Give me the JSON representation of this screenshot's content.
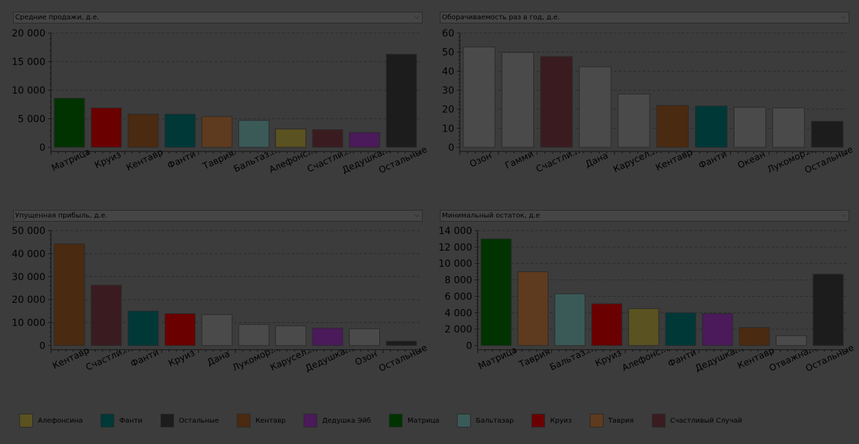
{
  "charts_meta": [
    {
      "dropdown_label": "Средние продажи, д.е."
    },
    {
      "dropdown_label": "Оборачиваемость раз в год, д.е."
    },
    {
      "dropdown_label": "Упущенная прибыль, д.е."
    },
    {
      "dropdown_label": "Минимальный остаток, д.е"
    }
  ],
  "chart_data": [
    {
      "type": "bar",
      "title": "Средние продажи, д.е.",
      "categories": [
        "Матрица",
        "Круиз",
        "Кентавр",
        "Фанти",
        "Таврия",
        "Бальтаз...",
        "Алефонс...",
        "Счастли...",
        "Дедушка...",
        "Остальные"
      ],
      "values": [
        8600,
        6900,
        5800,
        5800,
        5400,
        4700,
        3200,
        3100,
        2600,
        16300
      ],
      "colors": [
        "#003300",
        "#6b0000",
        "#4a2a10",
        "#003838",
        "#5e3a1e",
        "#3a5a58",
        "#5a5220",
        "#3a1c20",
        "#4a1a5a",
        "#1c1c1c"
      ],
      "ylim": [
        0,
        20000
      ],
      "yticks": [
        0,
        5000,
        10000,
        15000,
        20000
      ],
      "ytick_labels": [
        "0",
        "5 000",
        "10 000",
        "15 000",
        "20 000"
      ],
      "grid": true
    },
    {
      "type": "bar",
      "title": "Оборачиваемость раз в год, д.е.",
      "categories": [
        "Озон",
        "Гамми",
        "Счастли...",
        "Дана",
        "Карусел...",
        "Кентавр",
        "Фанти",
        "Океан",
        "Лукомор...",
        "Остальные"
      ],
      "values": [
        52.7,
        49.8,
        47.7,
        42.3,
        28,
        22,
        21.7,
        21,
        20.7,
        13.7
      ],
      "colors": [
        "#4a4a4a",
        "#4a4a4a",
        "#3a1c20",
        "#4a4a4a",
        "#4a4a4a",
        "#4a2a10",
        "#003838",
        "#4a4a4a",
        "#4a4a4a",
        "#1c1c1c"
      ],
      "ylim": [
        0,
        60
      ],
      "yticks": [
        0,
        10,
        20,
        30,
        40,
        50,
        60
      ],
      "ytick_labels": [
        "0",
        "10",
        "20",
        "30",
        "40",
        "50",
        "60"
      ],
      "grid": true
    },
    {
      "type": "bar",
      "title": "Упущенная прибыль, д.е.",
      "categories": [
        "Кентавр",
        "Счастли...",
        "Фанти",
        "Круиз",
        "Дана",
        "Лукомор...",
        "Карусел...",
        "Дедушка...",
        "Озон",
        "Остальные"
      ],
      "values": [
        44200,
        26300,
        15000,
        13900,
        13500,
        9200,
        8600,
        7600,
        7300,
        1900
      ],
      "colors": [
        "#4a2a10",
        "#3a1c20",
        "#003838",
        "#6b0000",
        "#4a4a4a",
        "#4a4a4a",
        "#4a4a4a",
        "#4a1a5a",
        "#4a4a4a",
        "#1c1c1c"
      ],
      "ylim": [
        0,
        50000
      ],
      "yticks": [
        0,
        10000,
        20000,
        30000,
        40000,
        50000
      ],
      "ytick_labels": [
        "0",
        "10 000",
        "20 000",
        "30 000",
        "40 000",
        "50 000"
      ],
      "grid": true
    },
    {
      "type": "bar",
      "title": "Минимальный остаток, д.е",
      "categories": [
        "Матрица",
        "Таврия",
        "Бальтаз...",
        "Круиз",
        "Алефонс...",
        "Фанти",
        "Дедушка...",
        "Кентавр",
        "Отважна...",
        "Остальные"
      ],
      "values": [
        13000,
        9000,
        6300,
        5100,
        4500,
        4000,
        3900,
        2200,
        1200,
        8700
      ],
      "colors": [
        "#003300",
        "#5e3a1e",
        "#3a5a58",
        "#6b0000",
        "#5a5220",
        "#003838",
        "#4a1a5a",
        "#4a2a10",
        "#4a4a4a",
        "#1c1c1c"
      ],
      "ylim": [
        0,
        14000
      ],
      "yticks": [
        0,
        2000,
        4000,
        6000,
        8000,
        10000,
        12000,
        14000
      ],
      "ytick_labels": [
        "0",
        "2 000",
        "4 000",
        "6 000",
        "8 000",
        "10 000",
        "12 000",
        "14 000"
      ],
      "grid": true
    }
  ],
  "legend": [
    {
      "label": "Алефонсина",
      "color": "#5a5220"
    },
    {
      "label": "Фанти",
      "color": "#003838"
    },
    {
      "label": "Остальные",
      "color": "#1c1c1c"
    },
    {
      "label": "Кентавр",
      "color": "#4a2a10"
    },
    {
      "label": "Дедушка Эйб",
      "color": "#4a1a5a"
    },
    {
      "label": "Матрица",
      "color": "#003300"
    },
    {
      "label": "Бальтазар",
      "color": "#3a5a58"
    },
    {
      "label": "Круиз",
      "color": "#6b0000"
    },
    {
      "label": "Таврия",
      "color": "#5e3a1e"
    },
    {
      "label": "Счастливый Случай",
      "color": "#3a1c20"
    }
  ]
}
